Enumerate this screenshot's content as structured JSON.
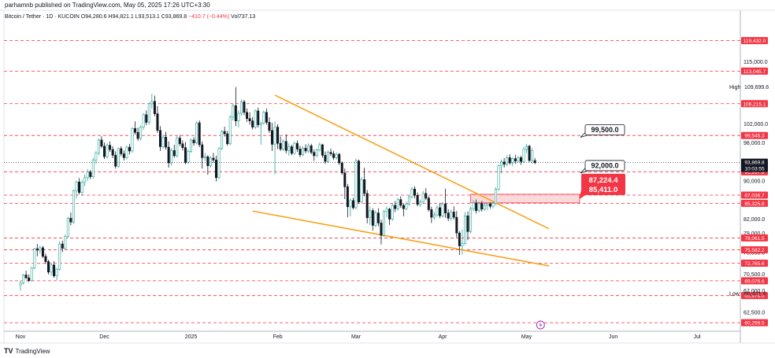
{
  "header": {
    "published": "parhamnb published on TradingView.com, May 05, 2025 17:26 UTC+3:30"
  },
  "legend": {
    "symbol": "Bitcoin / Tether · 1D · KUCOIN",
    "open": "O94,280.6",
    "high": "H94,821.1",
    "low": "L93,513.1",
    "close": "C93,869.8",
    "change": "−410.7 (−0.44%)",
    "volume": "Vol737.13"
  },
  "footer": {
    "brand": "TradingView"
  },
  "colors": {
    "up": "#26a69a",
    "down": "#131722",
    "wedge": "#f7a21b",
    "level": "#f23645",
    "badge_dark": "#131722",
    "zone_fill": "#f8c9cb"
  },
  "chart_data": {
    "type": "candlestick",
    "ylim": [
      58500,
      123500
    ],
    "y_ticks": [
      "115,000.0",
      "102,000.0",
      "98,000.0",
      "90,000.0",
      "82,000.0",
      "79,000.0",
      "75,000.0",
      "70,500.0",
      "67,000.0",
      "62,500.0"
    ],
    "x_ticks": [
      "Nov",
      "Dec",
      "2025",
      "Feb",
      "Mar",
      "Apr",
      "May",
      "Jun",
      "Jul"
    ],
    "x_tick_days": [
      0,
      30,
      61,
      92,
      120,
      151,
      181,
      212,
      242
    ],
    "last_day": 184,
    "levels": [
      {
        "label": "119,432.0",
        "value": 119432
      },
      {
        "label": "113,045.7",
        "value": 113045.7
      },
      {
        "label": "106,215.1",
        "value": 106215.1
      },
      {
        "label": "99,546.3",
        "value": 99546.3
      },
      {
        "label": "91,937.8",
        "value": 91937.8
      },
      {
        "label": "87,036.7",
        "value": 87036.7
      },
      {
        "label": "85,325.8",
        "value": 85325.8
      },
      {
        "label": "78,061.5",
        "value": 78061.5
      },
      {
        "label": "75,582.2",
        "value": 75582.2
      },
      {
        "label": "72,765.6",
        "value": 72765.6
      },
      {
        "label": "69,076.6",
        "value": 69076.6
      },
      {
        "label": "65,976.0",
        "value": 65976
      },
      {
        "label": "60,299.5",
        "value": 60299.5
      }
    ],
    "high_marker": {
      "label": "High",
      "value_label": "109,699.6",
      "value": 109699.6
    },
    "low_marker": {
      "label": "Low",
      "value_label": "66,441.4",
      "value": 66441.4
    },
    "current_price": {
      "value": 93869.8,
      "label": "93,869.8",
      "countdown": "10:03:55"
    },
    "annotations": [
      {
        "text": "99,500.0",
        "value": 99500
      },
      {
        "text": "92,000.0",
        "value": 92000
      }
    ],
    "zone": {
      "top": 87224.4,
      "bottom": 85411.0,
      "top_label": "87,224.4",
      "bottom_label": "85,411.0",
      "start_day": 161,
      "end_day": 200
    },
    "wedge_upper": [
      {
        "day": 91,
        "price": 108000
      },
      {
        "day": 189,
        "price": 80000
      }
    ],
    "wedge_lower": [
      {
        "day": 83,
        "price": 83700
      },
      {
        "day": 189,
        "price": 72200
      }
    ],
    "candles": [
      [
        0,
        68200,
        69100,
        67000,
        68600
      ],
      [
        1,
        68600,
        70500,
        68300,
        70300
      ],
      [
        2,
        70300,
        71200,
        69400,
        69700
      ],
      [
        3,
        69700,
        70400,
        68800,
        69100
      ],
      [
        4,
        69100,
        72000,
        68900,
        71800
      ],
      [
        5,
        71800,
        76000,
        71500,
        75800
      ],
      [
        6,
        75800,
        76800,
        74200,
        75500
      ],
      [
        7,
        75500,
        76500,
        74800,
        76000
      ],
      [
        8,
        76000,
        76400,
        73800,
        74200
      ],
      [
        9,
        74200,
        74800,
        72600,
        73100
      ],
      [
        10,
        73100,
        73500,
        70400,
        70900
      ],
      [
        11,
        70900,
        72900,
        70100,
        72400
      ],
      [
        12,
        72400,
        73200,
        69700,
        70100
      ],
      [
        13,
        70100,
        71800,
        69200,
        71500
      ],
      [
        14,
        71500,
        77400,
        71200,
        76800
      ],
      [
        15,
        76800,
        77500,
        75100,
        75900
      ],
      [
        16,
        75900,
        78800,
        75600,
        78400
      ],
      [
        17,
        78400,
        82500,
        78100,
        82200
      ],
      [
        18,
        82200,
        83400,
        80700,
        81400
      ],
      [
        19,
        81400,
        88200,
        81000,
        88000
      ],
      [
        20,
        88000,
        90100,
        86300,
        89800
      ],
      [
        21,
        89800,
        90600,
        87200,
        87600
      ],
      [
        22,
        87600,
        90200,
        86900,
        89700
      ],
      [
        23,
        89700,
        91400,
        88900,
        90700
      ],
      [
        24,
        90700,
        92500,
        90000,
        91900
      ],
      [
        25,
        91900,
        92300,
        90400,
        90900
      ],
      [
        26,
        90900,
        94900,
        90500,
        94400
      ],
      [
        27,
        94400,
        96300,
        93600,
        95900
      ],
      [
        28,
        95900,
        98900,
        95400,
        98600
      ],
      [
        29,
        98600,
        99400,
        96900,
        97300
      ],
      [
        30,
        97300,
        98100,
        94600,
        95100
      ],
      [
        31,
        95100,
        97900,
        94700,
        97500
      ],
      [
        32,
        97500,
        98300,
        96100,
        96600
      ],
      [
        33,
        96600,
        97300,
        94800,
        95400
      ],
      [
        34,
        95400,
        96200,
        92600,
        93100
      ],
      [
        35,
        93100,
        97000,
        92800,
        96800
      ],
      [
        36,
        96800,
        97300,
        95200,
        95700
      ],
      [
        37,
        95700,
        96400,
        94300,
        94900
      ],
      [
        38,
        94900,
        97400,
        94500,
        97100
      ],
      [
        39,
        97100,
        97800,
        95600,
        96300
      ],
      [
        40,
        96300,
        101300,
        95900,
        101000
      ],
      [
        41,
        101000,
        102500,
        99700,
        100200
      ],
      [
        42,
        100200,
        101200,
        98400,
        98900
      ],
      [
        43,
        98900,
        101700,
        98500,
        101300
      ],
      [
        44,
        101300,
        104200,
        100800,
        103900
      ],
      [
        45,
        103900,
        104800,
        101700,
        102300
      ],
      [
        46,
        102300,
        106500,
        101800,
        106200
      ],
      [
        47,
        106200,
        108300,
        105200,
        106700
      ],
      [
        48,
        106700,
        107900,
        103600,
        104100
      ],
      [
        49,
        104100,
        105700,
        100100,
        100600
      ],
      [
        50,
        100600,
        101500,
        96300,
        97200
      ],
      [
        51,
        97200,
        99800,
        96800,
        99200
      ],
      [
        52,
        99200,
        100300,
        96600,
        97100
      ],
      [
        53,
        97100,
        98300,
        92800,
        93800
      ],
      [
        54,
        93800,
        96900,
        93200,
        96400
      ],
      [
        55,
        96400,
        97600,
        94900,
        95300
      ],
      [
        56,
        95300,
        99400,
        94900,
        99000
      ],
      [
        57,
        99000,
        99600,
        97300,
        97800
      ],
      [
        58,
        97800,
        98500,
        96400,
        97000
      ],
      [
        59,
        97000,
        98200,
        93500,
        93900
      ],
      [
        60,
        93900,
        96600,
        93600,
        96200
      ],
      [
        61,
        96200,
        98900,
        95900,
        98600
      ],
      [
        62,
        98600,
        99200,
        97400,
        98000
      ],
      [
        63,
        98000,
        102500,
        97700,
        102200
      ],
      [
        64,
        102200,
        102700,
        97100,
        97600
      ],
      [
        65,
        97600,
        98300,
        92600,
        94900
      ],
      [
        66,
        94900,
        95900,
        94200,
        95100
      ],
      [
        67,
        95100,
        95400,
        91300,
        93200
      ],
      [
        68,
        93200,
        95200,
        92800,
        94800
      ],
      [
        69,
        94800,
        95900,
        93800,
        94400
      ],
      [
        70,
        94400,
        95300,
        89900,
        90700
      ],
      [
        71,
        90700,
        97100,
        90400,
        96800
      ],
      [
        72,
        96800,
        100700,
        96500,
        100400
      ],
      [
        73,
        100400,
        101400,
        99300,
        99900
      ],
      [
        74,
        99900,
        100500,
        97400,
        97800
      ],
      [
        75,
        97800,
        103800,
        97500,
        103400
      ],
      [
        76,
        103400,
        106200,
        102700,
        105800
      ],
      [
        77,
        105800,
        109700,
        101500,
        102600
      ],
      [
        78,
        102600,
        104800,
        101200,
        104200
      ],
      [
        79,
        104200,
        107100,
        103700,
        106600
      ],
      [
        80,
        106600,
        107000,
        103800,
        104400
      ],
      [
        81,
        104400,
        105200,
        102400,
        103100
      ],
      [
        82,
        103100,
        104400,
        101800,
        102600
      ],
      [
        83,
        102600,
        103400,
        100800,
        101300
      ],
      [
        84,
        101300,
        105000,
        100900,
        104700
      ],
      [
        85,
        104700,
        105400,
        101200,
        101800
      ],
      [
        86,
        101800,
        102400,
        97600,
        102100
      ],
      [
        87,
        102100,
        104800,
        101800,
        104400
      ],
      [
        88,
        104400,
        105200,
        101800,
        102300
      ],
      [
        89,
        102300,
        103400,
        100100,
        100600
      ],
      [
        90,
        100600,
        102200,
        96300,
        97700
      ],
      [
        91,
        97700,
        102500,
        91400,
        101300
      ],
      [
        92,
        101300,
        101900,
        96700,
        97900
      ],
      [
        93,
        97900,
        99300,
        96300,
        96700
      ],
      [
        94,
        96700,
        98700,
        96300,
        98300
      ],
      [
        95,
        98300,
        99800,
        95800,
        96400
      ],
      [
        96,
        96400,
        97900,
        95300,
        97200
      ],
      [
        97,
        97200,
        97600,
        95400,
        95800
      ],
      [
        98,
        95800,
        98300,
        95500,
        97900
      ],
      [
        99,
        97900,
        98500,
        96100,
        96700
      ],
      [
        100,
        96700,
        97400,
        95000,
        95500
      ],
      [
        101,
        95500,
        97300,
        95200,
        96900
      ],
      [
        102,
        96900,
        97700,
        95800,
        96300
      ],
      [
        103,
        96300,
        97900,
        95900,
        97400
      ],
      [
        104,
        97400,
        97800,
        95600,
        96000
      ],
      [
        105,
        96000,
        96600,
        94200,
        95300
      ],
      [
        106,
        95300,
        96800,
        95000,
        96500
      ],
      [
        107,
        96500,
        98100,
        96200,
        97600
      ],
      [
        108,
        97600,
        97800,
        94900,
        95400
      ],
      [
        109,
        95400,
        96200,
        93600,
        94100
      ],
      [
        110,
        94100,
        96400,
        93800,
        96000
      ],
      [
        111,
        96000,
        96800,
        95200,
        95700
      ],
      [
        112,
        95700,
        96300,
        94400,
        94900
      ],
      [
        113,
        94900,
        96000,
        94500,
        95600
      ],
      [
        114,
        95600,
        95900,
        93400,
        93800
      ],
      [
        115,
        93800,
        94100,
        91300,
        91700
      ],
      [
        116,
        91700,
        92600,
        86200,
        88800
      ],
      [
        117,
        88800,
        89400,
        82400,
        84600
      ],
      [
        118,
        84600,
        86300,
        82600,
        85900
      ],
      [
        119,
        85900,
        86500,
        84000,
        84400
      ],
      [
        120,
        84400,
        94700,
        84100,
        94200
      ],
      [
        121,
        94200,
        94500,
        85200,
        85600
      ],
      [
        122,
        85600,
        90800,
        85300,
        90300
      ],
      [
        123,
        90300,
        92800,
        86800,
        87400
      ],
      [
        124,
        87400,
        88100,
        81100,
        82300
      ],
      [
        125,
        82300,
        84700,
        80800,
        83800
      ],
      [
        126,
        83800,
        84300,
        79600,
        80700
      ],
      [
        127,
        80700,
        83800,
        80300,
        83300
      ],
      [
        128,
        83300,
        84300,
        80500,
        81200
      ],
      [
        129,
        81200,
        81900,
        76700,
        78600
      ],
      [
        130,
        78600,
        83900,
        78300,
        83600
      ],
      [
        131,
        83600,
        84700,
        82400,
        84100
      ],
      [
        132,
        84100,
        84400,
        80800,
        82000
      ],
      [
        133,
        82000,
        85300,
        81600,
        84900
      ],
      [
        134,
        84900,
        85800,
        83500,
        84200
      ],
      [
        135,
        84200,
        86500,
        83800,
        86100
      ],
      [
        136,
        86100,
        86800,
        84400,
        84900
      ],
      [
        137,
        84900,
        85200,
        82600,
        84200
      ],
      [
        138,
        84200,
        85700,
        83900,
        85200
      ],
      [
        139,
        85200,
        87100,
        84800,
        86700
      ],
      [
        140,
        86700,
        88800,
        86300,
        88300
      ],
      [
        141,
        88300,
        88900,
        86400,
        87000
      ],
      [
        142,
        87000,
        87600,
        84700,
        85100
      ],
      [
        143,
        85100,
        86100,
        84600,
        85600
      ],
      [
        144,
        85600,
        87900,
        85200,
        87400
      ],
      [
        145,
        87400,
        88500,
        86000,
        86400
      ],
      [
        146,
        86400,
        86800,
        83600,
        84000
      ],
      [
        147,
        84000,
        84600,
        81200,
        82400
      ],
      [
        148,
        82400,
        83500,
        81900,
        82900
      ],
      [
        149,
        82900,
        84900,
        82500,
        84400
      ],
      [
        150,
        84400,
        85400,
        82200,
        82700
      ],
      [
        151,
        82700,
        85600,
        82300,
        85200
      ],
      [
        152,
        85200,
        88400,
        82300,
        83300
      ],
      [
        153,
        83300,
        84100,
        81600,
        82200
      ],
      [
        154,
        82200,
        84000,
        81700,
        83500
      ],
      [
        155,
        83500,
        84700,
        81900,
        82400
      ],
      [
        156,
        82400,
        83700,
        78200,
        79100
      ],
      [
        157,
        79100,
        79500,
        74500,
        76400
      ],
      [
        158,
        76400,
        79800,
        74600,
        76900
      ],
      [
        159,
        76900,
        83500,
        76600,
        82700
      ],
      [
        160,
        82700,
        83600,
        77600,
        79400
      ],
      [
        161,
        79400,
        84700,
        79000,
        84200
      ],
      [
        162,
        84200,
        86000,
        83700,
        85400
      ],
      [
        163,
        85400,
        86100,
        83200,
        83800
      ],
      [
        164,
        83800,
        85700,
        83400,
        85300
      ],
      [
        165,
        85300,
        85800,
        83600,
        84100
      ],
      [
        166,
        84100,
        85300,
        83700,
        84900
      ],
      [
        167,
        84900,
        85500,
        83900,
        85200
      ],
      [
        168,
        85200,
        85500,
        84200,
        84700
      ],
      [
        169,
        84700,
        85600,
        84300,
        85300
      ],
      [
        170,
        85300,
        88700,
        84900,
        88300
      ],
      [
        171,
        88300,
        93500,
        87900,
        93200
      ],
      [
        172,
        93200,
        94500,
        91600,
        94000
      ],
      [
        173,
        94000,
        94800,
        92800,
        93500
      ],
      [
        174,
        93500,
        95400,
        93100,
        94900
      ],
      [
        175,
        94900,
        95600,
        93400,
        93800
      ],
      [
        176,
        93800,
        95000,
        93100,
        94700
      ],
      [
        177,
        94700,
        95500,
        93600,
        94200
      ],
      [
        178,
        94200,
        95200,
        93800,
        94900
      ],
      [
        179,
        94900,
        95300,
        93400,
        94100
      ],
      [
        180,
        94100,
        97200,
        93700,
        96600
      ],
      [
        181,
        96600,
        97800,
        95800,
        97300
      ],
      [
        182,
        97300,
        97600,
        94000,
        94300
      ],
      [
        183,
        94300,
        96900,
        93600,
        96400
      ],
      [
        184,
        94280.6,
        94821.1,
        93513.1,
        93869.8
      ]
    ]
  }
}
